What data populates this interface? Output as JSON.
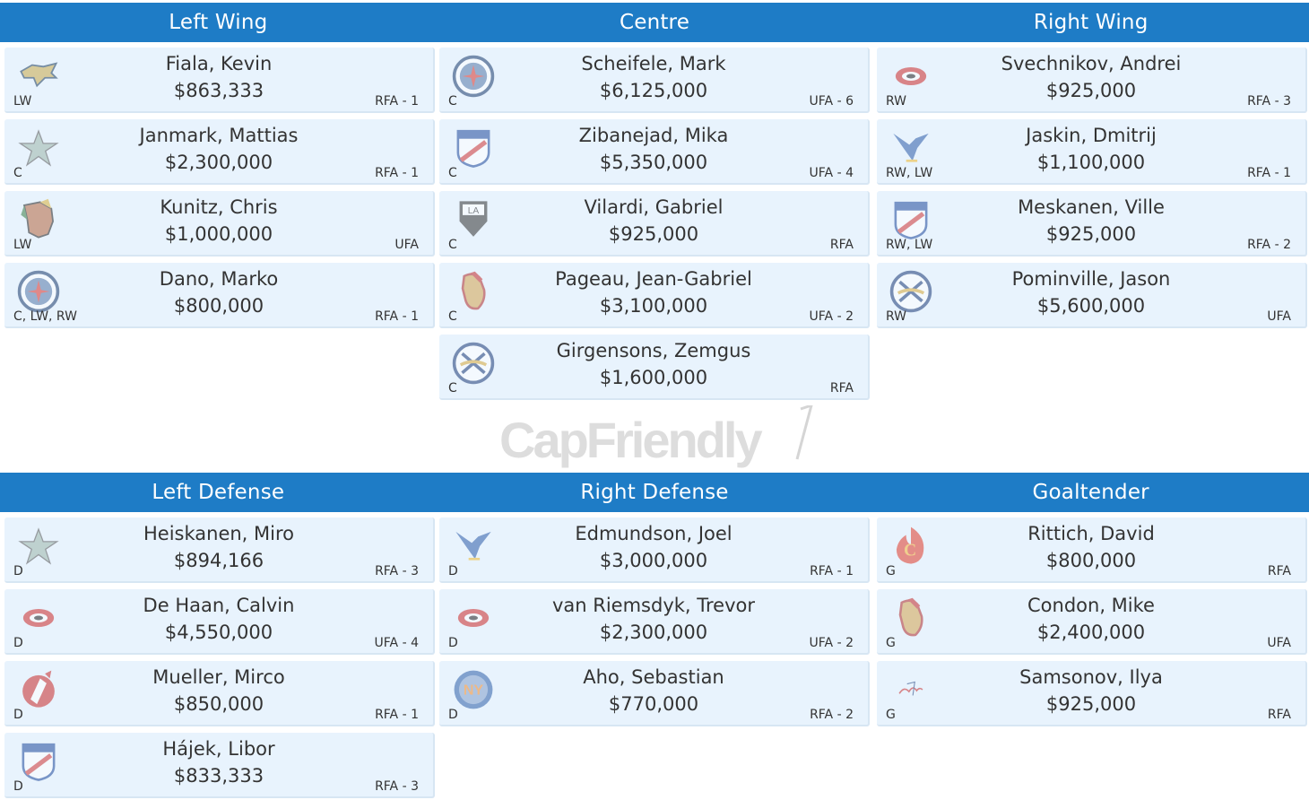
{
  "headers_top": [
    "Left Wing",
    "Centre",
    "Right Wing"
  ],
  "headers_bottom": [
    "Left Defense",
    "Right Defense",
    "Goaltender"
  ],
  "watermark": "CapFriendly",
  "left_wing": [
    {
      "name": "Fiala, Kevin",
      "salary": "$863,333",
      "pos": "LW",
      "status": "RFA - 1",
      "icon": "predators-logo-icon"
    },
    {
      "name": "Janmark, Mattias",
      "salary": "$2,300,000",
      "pos": "C",
      "status": "RFA - 1",
      "icon": "stars-logo-icon"
    },
    {
      "name": "Kunitz, Chris",
      "salary": "$1,000,000",
      "pos": "LW",
      "status": "UFA",
      "icon": "blackhawks-logo-icon"
    },
    {
      "name": "Dano, Marko",
      "salary": "$800,000",
      "pos": "C, LW, RW",
      "status": "RFA - 1",
      "icon": "jets-logo-icon"
    }
  ],
  "centre": [
    {
      "name": "Scheifele, Mark",
      "salary": "$6,125,000",
      "pos": "C",
      "status": "UFA - 6",
      "icon": "jets-logo-icon"
    },
    {
      "name": "Zibanejad, Mika",
      "salary": "$5,350,000",
      "pos": "C",
      "status": "UFA - 4",
      "icon": "rangers-logo-icon"
    },
    {
      "name": "Vilardi, Gabriel",
      "salary": "$925,000",
      "pos": "C",
      "status": "RFA",
      "icon": "kings-logo-icon"
    },
    {
      "name": "Pageau, Jean-Gabriel",
      "salary": "$3,100,000",
      "pos": "C",
      "status": "UFA - 2",
      "icon": "senators-logo-icon"
    },
    {
      "name": "Girgensons, Zemgus",
      "salary": "$1,600,000",
      "pos": "C",
      "status": "RFA",
      "icon": "sabres-logo-icon"
    }
  ],
  "right_wing": [
    {
      "name": "Svechnikov, Andrei",
      "salary": "$925,000",
      "pos": "RW",
      "status": "RFA - 3",
      "icon": "hurricanes-logo-icon"
    },
    {
      "name": "Jaskin, Dmitrij",
      "salary": "$1,100,000",
      "pos": "RW, LW",
      "status": "RFA - 1",
      "icon": "blues-logo-icon"
    },
    {
      "name": "Meskanen, Ville",
      "salary": "$925,000",
      "pos": "RW, LW",
      "status": "RFA - 2",
      "icon": "rangers-logo-icon"
    },
    {
      "name": "Pominville, Jason",
      "salary": "$5,600,000",
      "pos": "RW",
      "status": "UFA",
      "icon": "sabres-logo-icon"
    }
  ],
  "left_defense": [
    {
      "name": "Heiskanen, Miro",
      "salary": "$894,166",
      "pos": "D",
      "status": "RFA - 3",
      "icon": "stars-logo-icon"
    },
    {
      "name": "De Haan, Calvin",
      "salary": "$4,550,000",
      "pos": "D",
      "status": "UFA - 4",
      "icon": "hurricanes-logo-icon"
    },
    {
      "name": "Mueller, Mirco",
      "salary": "$850,000",
      "pos": "D",
      "status": "RFA - 1",
      "icon": "devils-logo-icon"
    },
    {
      "name": "Hájek, Libor",
      "salary": "$833,333",
      "pos": "D",
      "status": "RFA - 3",
      "icon": "rangers-logo-icon"
    }
  ],
  "right_defense": [
    {
      "name": "Edmundson, Joel",
      "salary": "$3,000,000",
      "pos": "D",
      "status": "RFA - 1",
      "icon": "blues-logo-icon"
    },
    {
      "name": "van Riemsdyk, Trevor",
      "salary": "$2,300,000",
      "pos": "D",
      "status": "UFA - 2",
      "icon": "hurricanes-logo-icon"
    },
    {
      "name": "Aho, Sebastian",
      "salary": "$770,000",
      "pos": "D",
      "status": "RFA - 2",
      "icon": "islanders-logo-icon"
    }
  ],
  "goaltender": [
    {
      "name": "Rittich, David",
      "salary": "$800,000",
      "pos": "G",
      "status": "RFA",
      "icon": "flames-logo-icon"
    },
    {
      "name": "Condon, Mike",
      "salary": "$2,400,000",
      "pos": "G",
      "status": "UFA",
      "icon": "senators-logo-icon"
    },
    {
      "name": "Samsonov, Ilya",
      "salary": "$925,000",
      "pos": "G",
      "status": "RFA",
      "icon": "capitals-logo-icon"
    }
  ],
  "colors": {
    "header_bg": "#1e7cc6",
    "card_bg": "#e8f3fd"
  }
}
